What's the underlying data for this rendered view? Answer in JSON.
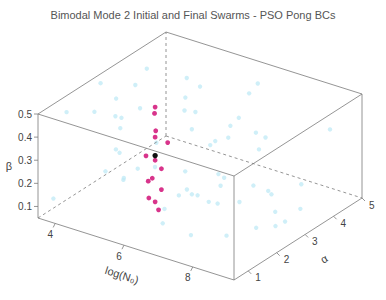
{
  "chart_data": {
    "type": "scatter3d",
    "title": "Bimodal Mode 2 Initial and Final Swarms - PSO Pong BCs",
    "xlabel": "log(N₀)",
    "ylabel": "α",
    "zlabel": "β",
    "xlim": [
      3.5,
      9.2
    ],
    "xticks": [
      4,
      6,
      8
    ],
    "ylim": [
      0.5,
      5
    ],
    "yticks": [
      1,
      2,
      3,
      4,
      5
    ],
    "zlim": [
      0.05,
      0.5
    ],
    "zticks": [
      0.1,
      0.2,
      0.3,
      0.4,
      0.5
    ],
    "series": [
      {
        "color": "#bfeaf5",
        "x": [
          3.7,
          4.2,
          5.1,
          6.3,
          7.8,
          8.9,
          4.5,
          5.8,
          7.1,
          8.4,
          3.9,
          6.7,
          7.5,
          5.3,
          8.1,
          4.8,
          6.0,
          9.0,
          3.6,
          7.3,
          5.6,
          6.9,
          8.6,
          4.1,
          5.0,
          7.9,
          6.4,
          3.8,
          8.8,
          5.4,
          6.6,
          4.4,
          7.6,
          5.9,
          8.2,
          3.5,
          6.1,
          7.0,
          4.7,
          8.5,
          5.2,
          6.8,
          9.1,
          4.0,
          7.4,
          5.7,
          8.0,
          4.9,
          6.2,
          7.7,
          3.6,
          8.7,
          5.5,
          6.5,
          4.3,
          7.2,
          8.3,
          5.1,
          6.9,
          4.6
        ],
        "y": [
          0.8,
          2.4,
          4.1,
          1.5,
          3.3,
          0.6,
          4.7,
          2.9,
          1.1,
          3.8,
          2.0,
          4.4,
          0.9,
          3.5,
          2.6,
          1.3,
          4.9,
          2.2,
          3.1,
          4.0,
          0.7,
          1.8,
          4.6,
          3.6,
          2.8,
          1.6,
          0.5,
          4.3,
          2.3,
          3.9,
          1.2,
          3.0,
          4.8,
          0.6,
          1.9,
          2.7,
          3.7,
          2.5,
          4.2,
          1.0,
          4.5,
          3.2,
          1.4,
          0.9,
          2.1,
          4.9,
          3.4,
          1.7,
          4.0,
          0.8,
          3.8,
          2.9,
          1.1,
          4.6,
          2.4,
          3.6,
          0.7,
          1.5,
          2.0,
          4.4
        ],
        "z": [
          0.12,
          0.45,
          0.3,
          0.08,
          0.38,
          0.22,
          0.15,
          0.49,
          0.27,
          0.06,
          0.41,
          0.19,
          0.33,
          0.1,
          0.47,
          0.25,
          0.36,
          0.14,
          0.29,
          0.07,
          0.43,
          0.21,
          0.35,
          0.48,
          0.16,
          0.31,
          0.4,
          0.09,
          0.26,
          0.44,
          0.18,
          0.37,
          0.05,
          0.32,
          0.23,
          0.46,
          0.11,
          0.39,
          0.28,
          0.42,
          0.13,
          0.34,
          0.2,
          0.5,
          0.17,
          0.24,
          0.06,
          0.41,
          0.3,
          0.15,
          0.37,
          0.09,
          0.27,
          0.45,
          0.22,
          0.12,
          0.33,
          0.48,
          0.19,
          0.4
        ]
      },
      {
        "color": "#d8348b",
        "x": [
          5.5,
          5.4,
          5.6,
          5.5,
          5.7,
          5.4,
          5.5,
          5.6,
          5.5,
          5.3,
          5.6,
          5.4,
          5.5,
          5.6
        ],
        "y": [
          2.2,
          2.3,
          2.1,
          2.2,
          2.4,
          2.0,
          2.2,
          2.3,
          2.1,
          2.2,
          2.3,
          2.1,
          2.2,
          2.2
        ],
        "z": [
          0.49,
          0.45,
          0.4,
          0.36,
          0.33,
          0.29,
          0.26,
          0.22,
          0.19,
          0.16,
          0.13,
          0.1,
          0.08,
          0.05
        ]
      },
      {
        "color": "#111111",
        "x": [
          5.5
        ],
        "y": [
          2.2
        ],
        "z": [
          0.28
        ]
      }
    ]
  }
}
